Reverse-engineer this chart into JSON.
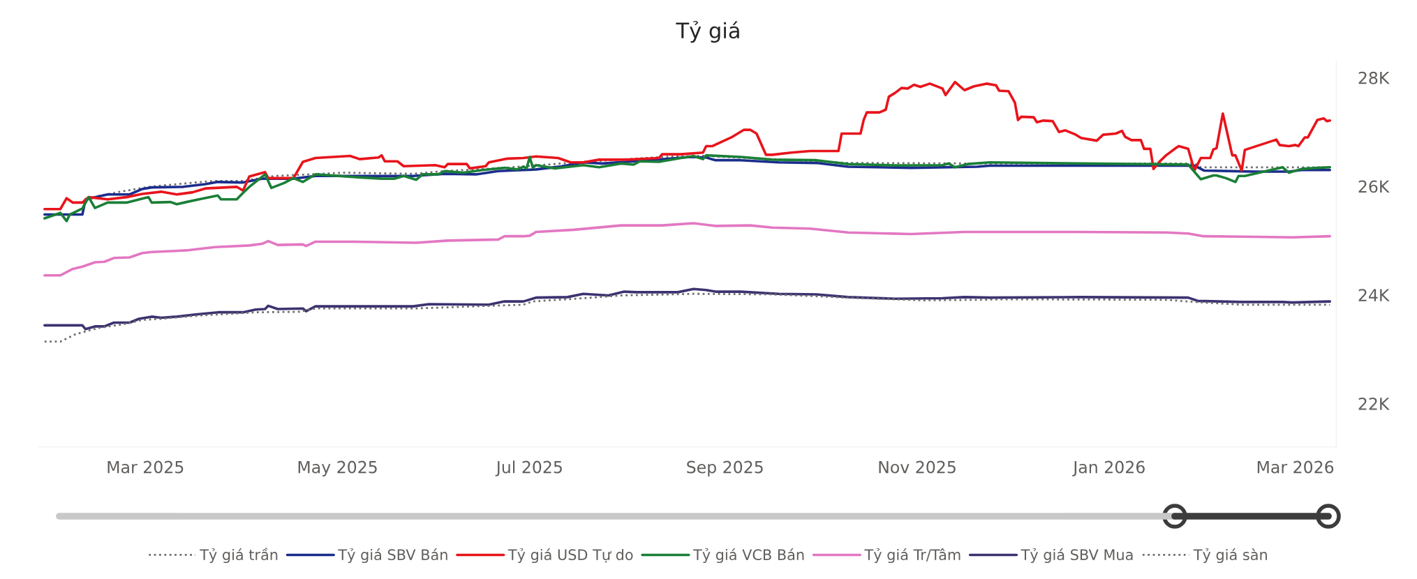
{
  "chart_data": {
    "type": "line",
    "title": "Tỷ giá",
    "xlim": [
      "2025-01-26",
      "2026-03-14"
    ],
    "ylim": [
      21200,
      28300
    ],
    "xticks": [
      {
        "value": "2025-03-01",
        "label": "Mar 2025"
      },
      {
        "value": "2025-05-01",
        "label": "May 2025"
      },
      {
        "value": "2025-07-01",
        "label": "Jul 2025"
      },
      {
        "value": "2025-09-01",
        "label": "Sep 2025"
      },
      {
        "value": "2025-11-01",
        "label": "Nov 2025"
      },
      {
        "value": "2026-01-01",
        "label": "Jan 2026"
      },
      {
        "value": "2026-03-01",
        "label": "Mar 2026"
      }
    ],
    "yticks": [
      {
        "value": 22000,
        "label": "22K"
      },
      {
        "value": 24000,
        "label": "24K"
      },
      {
        "value": 26000,
        "label": "26K"
      },
      {
        "value": 28000,
        "label": "28K"
      }
    ],
    "legend": "bottom",
    "series": [
      {
        "name": "Tỷ giá trần",
        "color": "#6e6e6e",
        "line_style": "dotted",
        "x": [
          "2025-02-14",
          "2025-02-21",
          "2025-03-02",
          "2025-03-13",
          "2025-03-23",
          "2025-04-01",
          "2025-04-11",
          "2025-05-03",
          "2025-05-25",
          "2025-06-04",
          "2025-06-23",
          "2025-07-18",
          "2025-08-12",
          "2025-08-25",
          "2025-09-16",
          "2025-10-10",
          "2025-11-20",
          "2026-01-28",
          "2026-01-30",
          "2026-02-18",
          "2026-03-12"
        ],
        "values": [
          25820,
          25900,
          25990,
          26050,
          26100,
          26100,
          26190,
          26250,
          26230,
          26280,
          26340,
          26450,
          26540,
          26560,
          26500,
          26430,
          26420,
          26420,
          26350,
          26350,
          26350
        ]
      },
      {
        "name": "Tỷ giá SBV Bán",
        "color": "#1a2d8c",
        "line_style": "solid",
        "x": [
          "2025-01-28",
          "2025-02-09",
          "2025-02-10",
          "2025-02-17",
          "2025-02-24",
          "2025-02-28",
          "2025-03-03",
          "2025-03-13",
          "2025-03-20",
          "2025-03-24",
          "2025-04-01",
          "2025-04-07",
          "2025-04-17",
          "2025-04-24",
          "2025-05-25",
          "2025-06-04",
          "2025-06-14",
          "2025-06-21",
          "2025-06-29",
          "2025-07-03",
          "2025-07-11",
          "2025-07-18",
          "2025-07-24",
          "2025-08-07",
          "2025-08-21",
          "2025-08-26",
          "2025-08-29",
          "2025-09-06",
          "2025-09-18",
          "2025-09-30",
          "2025-10-10",
          "2025-10-30",
          "2025-11-20",
          "2025-11-24",
          "2026-01-28",
          "2026-01-31",
          "2026-02-16",
          "2026-02-27",
          "2026-03-03",
          "2026-03-12"
        ],
        "values": [
          25480,
          25480,
          25760,
          25850,
          25850,
          25950,
          25980,
          25990,
          26040,
          26080,
          26070,
          26140,
          26140,
          26190,
          26190,
          26230,
          26220,
          26280,
          26300,
          26310,
          26365,
          26440,
          26420,
          26475,
          26540,
          26530,
          26480,
          26480,
          26440,
          26430,
          26360,
          26340,
          26360,
          26380,
          26380,
          26290,
          26270,
          26270,
          26300,
          26300
        ]
      },
      {
        "name": "Tỷ giá USD Tự do",
        "color": "#e8141b",
        "line_style": "solid",
        "x": [
          "2025-01-28",
          "2025-02-02",
          "2025-02-04",
          "2025-02-06",
          "2025-02-09",
          "2025-02-11",
          "2025-02-17",
          "2025-02-23",
          "2025-02-28",
          "2025-03-06",
          "2025-03-11",
          "2025-03-16",
          "2025-03-20",
          "2025-03-30",
          "2025-04-01",
          "2025-04-03",
          "2025-04-08",
          "2025-04-09",
          "2025-04-17",
          "2025-04-20",
          "2025-04-24",
          "2025-05-05",
          "2025-05-08",
          "2025-05-14",
          "2025-05-15",
          "2025-05-16",
          "2025-05-20",
          "2025-05-22",
          "2025-06-01",
          "2025-06-04",
          "2025-06-05",
          "2025-06-11",
          "2025-06-12",
          "2025-06-17",
          "2025-06-18",
          "2025-06-24",
          "2025-06-29",
          "2025-07-03",
          "2025-07-10",
          "2025-07-14",
          "2025-07-18",
          "2025-07-23",
          "2025-08-01",
          "2025-08-11",
          "2025-08-12",
          "2025-08-18",
          "2025-08-25",
          "2025-08-26",
          "2025-08-28",
          "2025-09-03",
          "2025-09-07",
          "2025-09-09",
          "2025-09-11",
          "2025-09-14",
          "2025-09-16",
          "2025-09-22",
          "2025-09-28",
          "2025-10-07",
          "2025-10-08",
          "2025-10-14",
          "2025-10-15",
          "2025-10-16",
          "2025-10-20",
          "2025-10-22",
          "2025-10-23",
          "2025-10-25",
          "2025-10-27",
          "2025-10-29",
          "2025-10-31",
          "2025-11-02",
          "2025-11-05",
          "2025-11-09",
          "2025-11-10",
          "2025-11-13",
          "2025-11-16",
          "2025-11-19",
          "2025-11-23",
          "2025-11-26",
          "2025-11-27",
          "2025-11-30",
          "2025-12-02",
          "2025-12-03",
          "2025-12-04",
          "2025-12-08",
          "2025-12-09",
          "2025-12-11",
          "2025-12-14",
          "2025-12-16",
          "2025-12-18",
          "2025-12-21",
          "2025-12-23",
          "2025-12-27",
          "2025-12-28",
          "2025-12-30",
          "2026-01-03",
          "2026-01-05",
          "2026-01-06",
          "2026-01-08",
          "2026-01-11",
          "2026-01-12",
          "2026-01-14",
          "2026-01-15",
          "2026-01-17",
          "2026-01-19",
          "2026-01-22",
          "2026-01-23",
          "2026-01-26",
          "2026-01-28",
          "2026-01-30",
          "2026-02-02",
          "2026-02-03",
          "2026-02-04",
          "2026-02-06",
          "2026-02-09",
          "2026-02-10",
          "2026-02-12",
          "2026-02-13",
          "2026-02-23",
          "2026-02-24",
          "2026-02-27",
          "2026-03-01",
          "2026-03-02",
          "2026-03-04",
          "2026-03-05",
          "2026-03-08",
          "2026-03-10",
          "2026-03-11",
          "2026-03-12"
        ],
        "values": [
          25580,
          25580,
          25780,
          25700,
          25700,
          25800,
          25760,
          25800,
          25860,
          25900,
          25850,
          25890,
          25960,
          25990,
          25920,
          26180,
          26260,
          26150,
          26150,
          26450,
          26520,
          26560,
          26500,
          26530,
          26570,
          26460,
          26460,
          26370,
          26390,
          26350,
          26410,
          26410,
          26330,
          26370,
          26440,
          26510,
          26520,
          26550,
          26520,
          26440,
          26440,
          26490,
          26490,
          26520,
          26590,
          26590,
          26620,
          26740,
          26740,
          26900,
          27040,
          27040,
          26970,
          26580,
          26580,
          26620,
          26650,
          26650,
          26970,
          26970,
          27220,
          27360,
          27360,
          27410,
          27650,
          27720,
          27810,
          27800,
          27870,
          27830,
          27890,
          27800,
          27680,
          27920,
          27770,
          27840,
          27890,
          27860,
          27760,
          27750,
          27540,
          27220,
          27280,
          27270,
          27180,
          27210,
          27200,
          27000,
          27030,
          26960,
          26890,
          26850,
          26840,
          26950,
          26970,
          27020,
          26910,
          26850,
          26850,
          26690,
          26690,
          26320,
          26460,
          26570,
          26700,
          26740,
          26690,
          26290,
          26520,
          26520,
          26680,
          26700,
          27340,
          26570,
          26570,
          26290,
          26670,
          26860,
          26760,
          26740,
          26760,
          26740,
          26900,
          26900,
          27220,
          27250,
          27200,
          27210
        ]
      },
      {
        "name": "Tỷ giá VCB Bán",
        "color": "#1a7f37",
        "line_style": "solid",
        "x": [
          "2025-01-28",
          "2025-02-02",
          "2025-02-04",
          "2025-02-05",
          "2025-02-09",
          "2025-02-11",
          "2025-02-13",
          "2025-02-17",
          "2025-02-23",
          "2025-03-02",
          "2025-03-03",
          "2025-03-09",
          "2025-03-11",
          "2025-03-14",
          "2025-03-18",
          "2025-03-24",
          "2025-03-25",
          "2025-03-30",
          "2025-04-01",
          "2025-04-03",
          "2025-04-08",
          "2025-04-10",
          "2025-04-14",
          "2025-04-17",
          "2025-04-20",
          "2025-04-24",
          "2025-05-06",
          "2025-05-15",
          "2025-05-19",
          "2025-05-22",
          "2025-05-26",
          "2025-05-28",
          "2025-06-02",
          "2025-06-04",
          "2025-06-10",
          "2025-06-16",
          "2025-06-23",
          "2025-06-27",
          "2025-06-29",
          "2025-06-30",
          "2025-07-01",
          "2025-07-02",
          "2025-07-03",
          "2025-07-09",
          "2025-07-18",
          "2025-07-23",
          "2025-07-30",
          "2025-08-03",
          "2025-08-05",
          "2025-08-11",
          "2025-08-18",
          "2025-08-22",
          "2025-08-25",
          "2025-08-26",
          "2025-09-06",
          "2025-09-16",
          "2025-09-30",
          "2025-10-10",
          "2025-10-25",
          "2025-11-09",
          "2025-11-11",
          "2025-11-13",
          "2025-11-17",
          "2025-11-24",
          "2025-12-23",
          "2026-01-26",
          "2026-01-30",
          "2026-02-03",
          "2026-02-04",
          "2026-02-07",
          "2026-02-10",
          "2026-02-11",
          "2026-02-13",
          "2026-02-25",
          "2026-02-27",
          "2026-03-03",
          "2026-03-08",
          "2026-03-12"
        ],
        "values": [
          25410,
          25510,
          25360,
          25480,
          25590,
          25800,
          25600,
          25700,
          25700,
          25800,
          25700,
          25710,
          25670,
          25710,
          25760,
          25830,
          25760,
          25760,
          25880,
          25990,
          26220,
          25970,
          26060,
          26150,
          26080,
          26220,
          26170,
          26140,
          26140,
          26190,
          26120,
          26220,
          26220,
          26280,
          26250,
          26300,
          26340,
          26310,
          26360,
          26330,
          26540,
          26340,
          26390,
          26330,
          26390,
          26350,
          26420,
          26400,
          26460,
          26450,
          26520,
          26555,
          26500,
          26570,
          26540,
          26490,
          26480,
          26410,
          26385,
          26390,
          26420,
          26350,
          26410,
          26440,
          26420,
          26400,
          26130,
          26200,
          26200,
          26150,
          26080,
          26190,
          26190,
          26350,
          26250,
          26320,
          26340,
          26350
        ]
      },
      {
        "name": "Tỷ giá Tr/Tâm",
        "color": "#e377c2",
        "line_style": "solid",
        "x": [
          "2025-01-28",
          "2025-02-02",
          "2025-02-06",
          "2025-02-09",
          "2025-02-13",
          "2025-02-16",
          "2025-02-19",
          "2025-02-24",
          "2025-02-28",
          "2025-03-03",
          "2025-03-14",
          "2025-03-23",
          "2025-04-03",
          "2025-04-07",
          "2025-04-09",
          "2025-04-12",
          "2025-04-20",
          "2025-04-21",
          "2025-04-24",
          "2025-05-06",
          "2025-05-26",
          "2025-06-05",
          "2025-06-21",
          "2025-06-23",
          "2025-06-29",
          "2025-07-01",
          "2025-07-03",
          "2025-07-15",
          "2025-07-30",
          "2025-08-12",
          "2025-08-22",
          "2025-08-29",
          "2025-09-09",
          "2025-09-16",
          "2025-09-28",
          "2025-10-10",
          "2025-10-30",
          "2025-11-16",
          "2025-11-29",
          "2025-12-21",
          "2026-01-19",
          "2026-01-26",
          "2026-01-31",
          "2026-02-17",
          "2026-02-28",
          "2026-03-12"
        ],
        "values": [
          24360,
          24360,
          24480,
          24520,
          24600,
          24610,
          24680,
          24690,
          24770,
          24790,
          24820,
          24880,
          24910,
          24940,
          24990,
          24920,
          24930,
          24900,
          24980,
          24980,
          24960,
          25000,
          25020,
          25080,
          25080,
          25090,
          25160,
          25200,
          25280,
          25280,
          25320,
          25270,
          25280,
          25240,
          25220,
          25150,
          25120,
          25160,
          25160,
          25160,
          25150,
          25130,
          25080,
          25070,
          25060,
          25080
        ]
      },
      {
        "name": "Tỷ giá SBV Mua",
        "color": "#3d3270",
        "line_style": "solid",
        "x": [
          "2025-01-28",
          "2025-02-09",
          "2025-02-10",
          "2025-02-13",
          "2025-02-16",
          "2025-02-19",
          "2025-02-24",
          "2025-02-27",
          "2025-03-03",
          "2025-03-06",
          "2025-03-11",
          "2025-03-17",
          "2025-03-24",
          "2025-04-01",
          "2025-04-05",
          "2025-04-08",
          "2025-04-09",
          "2025-04-12",
          "2025-04-20",
          "2025-04-21",
          "2025-04-24",
          "2025-05-25",
          "2025-05-30",
          "2025-06-18",
          "2025-06-23",
          "2025-06-29",
          "2025-07-03",
          "2025-07-13",
          "2025-07-18",
          "2025-07-26",
          "2025-07-31",
          "2025-08-04",
          "2025-08-17",
          "2025-08-22",
          "2025-08-26",
          "2025-08-29",
          "2025-09-06",
          "2025-09-18",
          "2025-09-30",
          "2025-10-10",
          "2025-10-25",
          "2025-11-09",
          "2025-11-16",
          "2025-11-24",
          "2025-12-23",
          "2026-01-26",
          "2026-01-29",
          "2026-02-12",
          "2026-02-25",
          "2026-02-28",
          "2026-03-12"
        ],
        "values": [
          23440,
          23440,
          23370,
          23420,
          23420,
          23490,
          23490,
          23560,
          23600,
          23580,
          23600,
          23640,
          23680,
          23680,
          23730,
          23740,
          23800,
          23740,
          23750,
          23700,
          23790,
          23790,
          23830,
          23820,
          23880,
          23880,
          23950,
          23960,
          24020,
          23990,
          24060,
          24050,
          24050,
          24110,
          24090,
          24060,
          24060,
          24020,
          24010,
          23960,
          23930,
          23940,
          23960,
          23950,
          23960,
          23950,
          23890,
          23870,
          23870,
          23860,
          23880
        ]
      },
      {
        "name": "Tỷ giá sàn",
        "color": "#6e6e6e",
        "line_style": "dotted",
        "x": [
          "2025-01-28",
          "2025-02-02",
          "2025-02-07",
          "2025-02-14",
          "2025-02-22",
          "2025-02-28",
          "2025-03-06",
          "2025-03-18",
          "2025-04-05",
          "2025-04-19",
          "2025-04-24",
          "2025-05-25",
          "2025-06-04",
          "2025-06-29",
          "2025-07-02",
          "2025-07-18",
          "2025-07-30",
          "2025-08-22",
          "2025-09-16",
          "2025-10-10",
          "2025-11-03",
          "2025-11-20",
          "2025-11-29",
          "2026-01-19",
          "2026-01-28",
          "2026-02-12",
          "2026-03-12"
        ],
        "values": [
          23140,
          23140,
          23280,
          23390,
          23460,
          23540,
          23560,
          23620,
          23680,
          23690,
          23750,
          23750,
          23770,
          23820,
          23880,
          23940,
          23990,
          24020,
          24010,
          23950,
          23900,
          23910,
          23920,
          23910,
          23870,
          23820,
          23820
        ]
      }
    ]
  }
}
